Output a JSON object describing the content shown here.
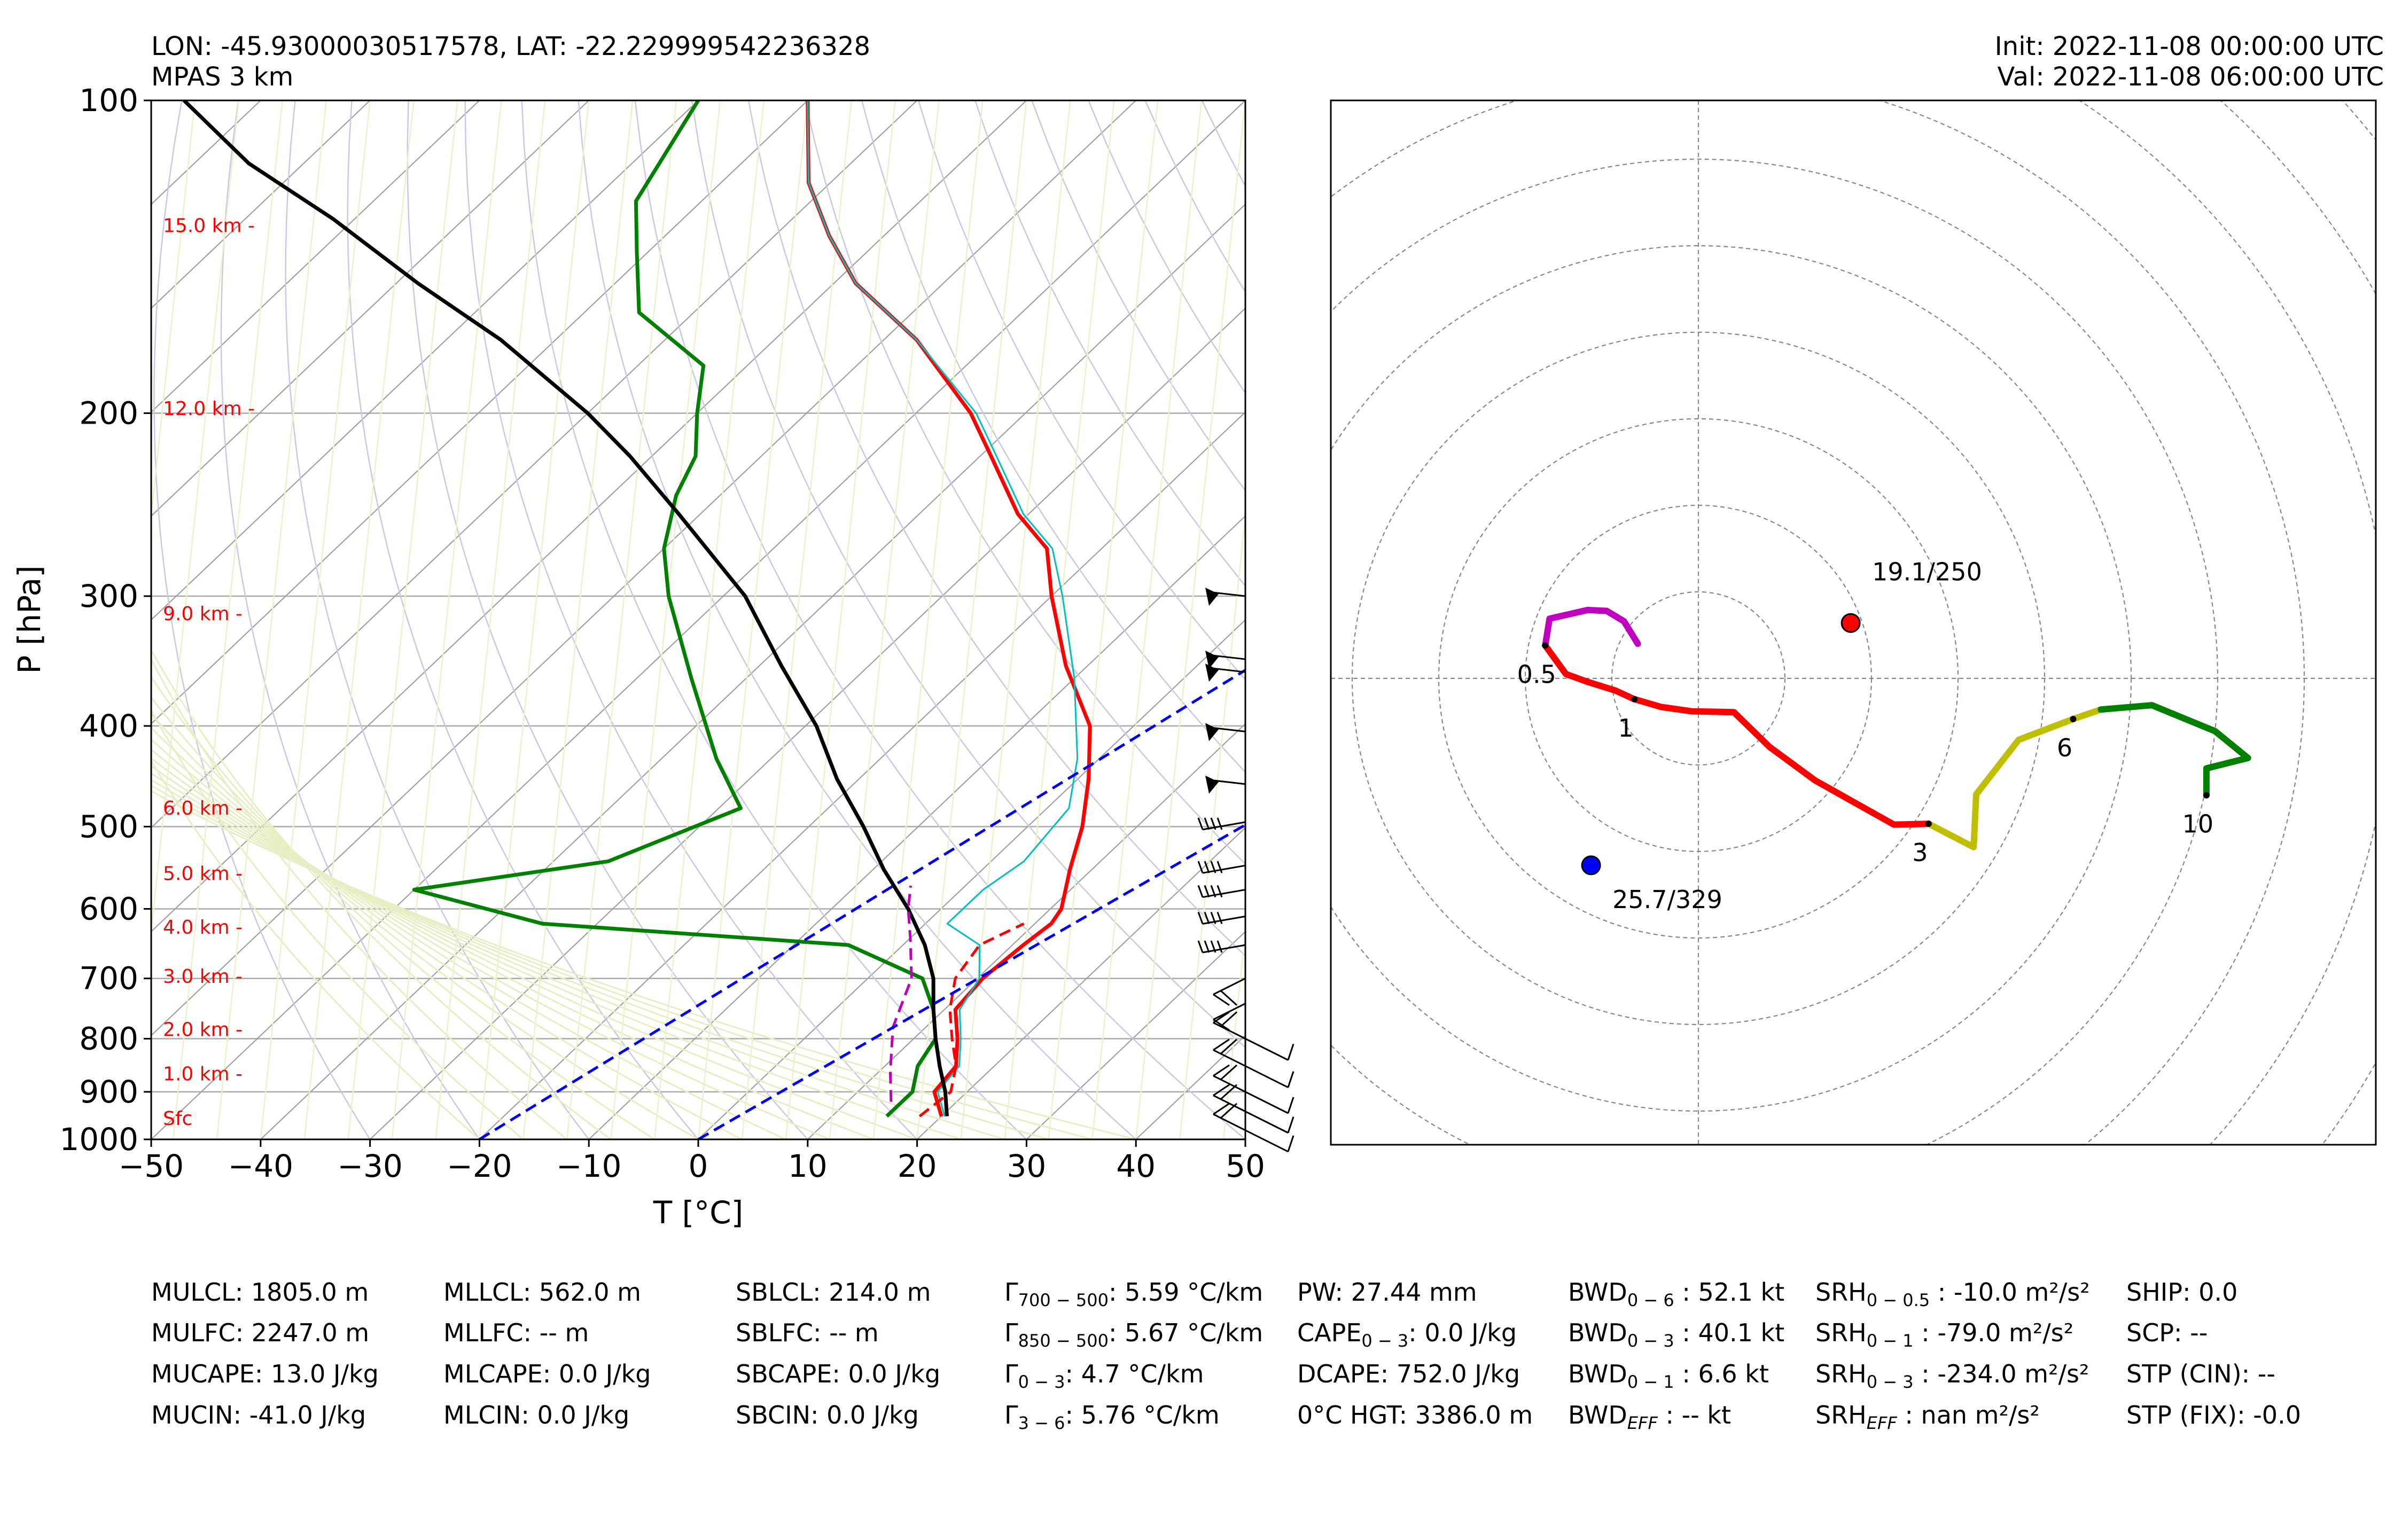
{
  "header": {
    "location": "LON: -45.93000030517578, LAT: -22.229999542236328",
    "model": "MPAS 3 km",
    "init": "Init: 2022-11-08 00:00:00 UTC",
    "valid": "Val: 2022-11-08 06:00:00 UTC"
  },
  "chart_data": [
    {
      "type": "line",
      "subtype": "skew-T log-P",
      "xlabel": "T [°C]",
      "ylabel": "P [hPa]",
      "xlim": [
        -50,
        50
      ],
      "ylim": [
        1000,
        100
      ],
      "y_scale": "log",
      "x_ticks": [
        "−50",
        "−40",
        "−30",
        "−20",
        "−10",
        "0",
        "10",
        "20",
        "30",
        "40",
        "50"
      ],
      "y_ticks": [
        100,
        200,
        300,
        400,
        500,
        600,
        700,
        800,
        900,
        1000
      ],
      "height_labels": [
        {
          "p": 132,
          "label": "15.0 km"
        },
        {
          "p": 198,
          "label": "12.0 km"
        },
        {
          "p": 312,
          "label": "9.0 km"
        },
        {
          "p": 480,
          "label": "6.0 km"
        },
        {
          "p": 555,
          "label": "5.0 km"
        },
        {
          "p": 625,
          "label": "4.0 km"
        },
        {
          "p": 697,
          "label": "3.0 km"
        },
        {
          "p": 784,
          "label": "2.0 km"
        },
        {
          "p": 865,
          "label": "1.0 km"
        },
        {
          "p": 955,
          "label": "Sfc"
        }
      ],
      "series": [
        {
          "role": "temperature",
          "color": "#ff0000",
          "points": [
            [
              20.0,
              950
            ],
            [
              17,
              900
            ],
            [
              16.5,
              850
            ],
            [
              14,
              800
            ],
            [
              11,
              750
            ],
            [
              10.5,
              700
            ],
            [
              11,
              650
            ],
            [
              11.5,
              620
            ],
            [
              11,
              600
            ],
            [
              8,
              550
            ],
            [
              5,
              500
            ],
            [
              1,
              450
            ],
            [
              -4,
              400
            ],
            [
              -12,
              350
            ],
            [
              -20,
              300
            ],
            [
              -25,
              270
            ],
            [
              -31,
              250
            ],
            [
              -39,
              220
            ],
            [
              -45,
              200
            ],
            [
              -57,
              170
            ],
            [
              -68,
              150
            ],
            [
              -75,
              135
            ],
            [
              -82,
              120
            ],
            [
              -90,
              100
            ]
          ]
        },
        {
          "role": "dewpoint",
          "color": "#008000",
          "points": [
            [
              15,
              950
            ],
            [
              15,
              900
            ],
            [
              13,
              850
            ],
            [
              12,
              800
            ],
            [
              9,
              750
            ],
            [
              5,
              700
            ],
            [
              -5,
              650
            ],
            [
              -35,
              620
            ],
            [
              -50,
              575
            ],
            [
              -35,
              540
            ],
            [
              -28,
              480
            ],
            [
              -35,
              430
            ],
            [
              -45,
              360
            ],
            [
              -55,
              300
            ],
            [
              -60,
              270
            ],
            [
              -64,
              240
            ],
            [
              -66,
              220
            ],
            [
              -70,
              200
            ],
            [
              -74,
              180
            ],
            [
              -85,
              160
            ],
            [
              -91,
              140
            ],
            [
              -96,
              125
            ],
            [
              -100,
              100
            ]
          ]
        },
        {
          "role": "virtual-temperature",
          "color": "#00bfbf",
          "points": [
            [
              20.3,
              950
            ],
            [
              17.3,
              900
            ],
            [
              16.8,
              850
            ],
            [
              14.3,
              800
            ],
            [
              11.4,
              750
            ],
            [
              10.2,
              700
            ],
            [
              7,
              650
            ],
            [
              2,
              620
            ],
            [
              2,
              575
            ],
            [
              3,
              540
            ],
            [
              2,
              480
            ],
            [
              -2,
              430
            ],
            [
              -10,
              360
            ],
            [
              -19,
              300
            ],
            [
              -24.5,
              270
            ],
            [
              -30.5,
              250
            ],
            [
              -38.5,
              220
            ],
            [
              -44.5,
              200
            ],
            [
              -57,
              170
            ],
            [
              -68,
              150
            ],
            [
              -75,
              135
            ],
            [
              -82,
              120
            ],
            [
              -90,
              100
            ]
          ]
        },
        {
          "role": "parcel-profile",
          "color": "#000000",
          "points": [
            [
              20.5,
              950
            ],
            [
              18,
              900
            ],
            [
              15,
              850
            ],
            [
              12,
              800
            ],
            [
              9,
              750
            ],
            [
              6,
              700
            ],
            [
              2,
              650
            ],
            [
              -3,
              600
            ],
            [
              -9,
              550
            ],
            [
              -15,
              500
            ],
            [
              -22,
              450
            ],
            [
              -29,
              400
            ],
            [
              -38,
              350
            ],
            [
              -48,
              300
            ],
            [
              -62,
              250
            ],
            [
              -72,
              220
            ],
            [
              -80,
              200
            ],
            [
              -95,
              170
            ],
            [
              -108,
              150
            ],
            [
              -122,
              130
            ],
            [
              -135,
              115
            ],
            [
              -147,
              100
            ]
          ]
        },
        {
          "role": "red-dashed",
          "color": "#ff0000",
          "dashed": true,
          "points": [
            [
              18,
              950
            ],
            [
              18.5,
              900
            ],
            [
              16.5,
              850
            ],
            [
              13.5,
              800
            ],
            [
              10.5,
              750
            ],
            [
              8,
              700
            ],
            [
              7,
              650
            ],
            [
              9,
              620
            ]
          ]
        },
        {
          "role": "magenta-dashed",
          "color": "#bf00bf",
          "dashed": true,
          "points": [
            [
              14,
              920
            ],
            [
              11,
              860
            ],
            [
              7,
              780
            ],
            [
              4,
              700
            ],
            [
              0,
              640
            ],
            [
              -3,
              600
            ],
            [
              -5,
              570
            ]
          ]
        },
        {
          "role": "blue-dashed-1",
          "color": "#0000ff",
          "dashed": true,
          "points": [
            [
              -20,
              1000
            ],
            [
              35,
              100
            ]
          ]
        },
        {
          "role": "blue-dashed-2",
          "color": "#0000ff",
          "dashed": true,
          "points": [
            [
              0,
              1000
            ],
            [
              60,
              120
            ]
          ]
        }
      ],
      "wind_barbs": [
        {
          "p": 300,
          "kind": "flag"
        },
        {
          "p": 345,
          "kind": "flag"
        },
        {
          "p": 355,
          "kind": "flag"
        },
        {
          "p": 405,
          "kind": "flag"
        },
        {
          "p": 455,
          "kind": "flag"
        },
        {
          "p": 495,
          "kind": "barbs",
          "n": 4
        },
        {
          "p": 545,
          "kind": "barbs",
          "n": 4
        },
        {
          "p": 575,
          "kind": "barbs",
          "n": 4
        },
        {
          "p": 610,
          "kind": "barbs",
          "n": 4
        },
        {
          "p": 650,
          "kind": "barbs",
          "n": 4
        },
        {
          "p": 700,
          "kind": "barbs",
          "n": 2
        },
        {
          "p": 740,
          "kind": "barbs",
          "n": 1
        },
        {
          "p": 800,
          "kind": "barbs",
          "n": 2
        },
        {
          "p": 850,
          "kind": "barbs",
          "n": 2
        },
        {
          "p": 900,
          "kind": "barbs",
          "n": 2
        },
        {
          "p": 940,
          "kind": "barbs",
          "n": 2
        },
        {
          "p": 980,
          "kind": "barbs",
          "n": 2
        }
      ]
    },
    {
      "type": "line",
      "subtype": "hodograph",
      "rings": 10,
      "segments": [
        {
          "color": "#bf00bf",
          "points": [
            [
              -7,
              4
            ],
            [
              -8.6,
              6.6
            ],
            [
              -10.6,
              7.8
            ],
            [
              -12.8,
              7.9
            ],
            [
              -17.2,
              6.9
            ],
            [
              -17.7,
              3.8
            ]
          ]
        },
        {
          "color": "#ff0000",
          "points": [
            [
              -17.7,
              3.8
            ],
            [
              -15.3,
              0.5
            ],
            [
              -12.8,
              -0.4
            ],
            [
              -9.6,
              -1.4
            ],
            [
              -7.4,
              -2.4
            ],
            [
              -4.3,
              -3.3
            ],
            [
              -0.8,
              -3.8
            ],
            [
              4.1,
              -3.9
            ],
            [
              8.2,
              -7.9
            ],
            [
              13.5,
              -11.8
            ],
            [
              22.6,
              -16.9
            ],
            [
              26.6,
              -16.8
            ]
          ]
        },
        {
          "color": "#bfbf00",
          "points": [
            [
              26.6,
              -16.8
            ],
            [
              31.8,
              -19.5
            ],
            [
              32.1,
              -13.4
            ],
            [
              37,
              -7.1
            ],
            [
              43.3,
              -4.7
            ],
            [
              46.5,
              -3.6
            ]
          ]
        },
        {
          "color": "#008000",
          "points": [
            [
              46.5,
              -3.6
            ],
            [
              52.4,
              -3.1
            ],
            [
              59.7,
              -6.1
            ],
            [
              63.5,
              -9.2
            ],
            [
              58.7,
              -10.4
            ],
            [
              58.7,
              -13.5
            ]
          ]
        }
      ],
      "markers": [
        {
          "u": 17.6,
          "v": 6.4,
          "color": "#ff0000",
          "label": "19.1/250"
        },
        {
          "u": -12.4,
          "v": -21.6,
          "color": "#0000ff",
          "label": "25.7/329"
        }
      ],
      "height_labels": [
        {
          "u": -17.7,
          "v": 3.8,
          "label": "0.5"
        },
        {
          "u": -7.4,
          "v": -2.4,
          "label": "1"
        },
        {
          "u": 26.6,
          "v": -16.8,
          "label": "3"
        },
        {
          "u": 43.3,
          "v": -4.7,
          "label": "6"
        },
        {
          "u": 58.7,
          "v": -13.5,
          "label": "10"
        }
      ]
    }
  ],
  "stats": {
    "col1": [
      "MULCL: 1805.0 m",
      "MULFC: 2247.0 m",
      "MUCAPE: 13.0 J/kg",
      "MUCIN: -41.0 J/kg"
    ],
    "col2": [
      "MLLCL: 562.0 m",
      "MLLFC: -- m",
      "MLCAPE: 0.0 J/kg",
      "MLCIN: 0.0 J/kg"
    ],
    "col3": [
      "SBLCL: 214.0 m",
      "SBLFC: -- m",
      "SBCAPE: 0.0 J/kg",
      "SBCIN: 0.0 J/kg"
    ],
    "col4": [
      {
        "base": "Γ",
        "sub": "700 − 500",
        "value": ": 5.59 °C/km"
      },
      {
        "base": "Γ",
        "sub": "850 − 500",
        "value": ": 5.67 °C/km"
      },
      {
        "base": "Γ",
        "sub": "0 − 3",
        "value": ": 4.7 °C/km"
      },
      {
        "base": "Γ",
        "sub": "3 − 6",
        "value": ": 5.76 °C/km"
      }
    ],
    "col5": [
      {
        "base": "PW: 27.44 mm",
        "sub": "",
        "value": ""
      },
      {
        "base": "CAPE",
        "sub": "0 − 3",
        "value": ": 0.0 J/kg"
      },
      {
        "base": "DCAPE: 752.0 J/kg",
        "sub": "",
        "value": ""
      },
      {
        "base": "0°C HGT: 3386.0 m",
        "sub": "",
        "value": ""
      }
    ],
    "col6": [
      {
        "base": "BWD",
        "sub": "0 − 6",
        "value": " : 52.1 kt"
      },
      {
        "base": "BWD",
        "sub": "0 − 3",
        "value": " : 40.1 kt"
      },
      {
        "base": "BWD",
        "sub": "0 − 1",
        "value": " : 6.6 kt"
      },
      {
        "base": "BWD",
        "sub": "EFF",
        "value": " : -- kt"
      }
    ],
    "col7": [
      {
        "base": "SRH",
        "sub": "0 − 0.5",
        "value": " : -10.0 m²/s²"
      },
      {
        "base": "SRH",
        "sub": "0 − 1",
        "value": " : -79.0 m²/s²"
      },
      {
        "base": "SRH",
        "sub": "0 − 3",
        "value": " : -234.0 m²/s²"
      },
      {
        "base": "SRH",
        "sub": "EFF",
        "value": " : nan m²/s²"
      }
    ],
    "col8": [
      "SHIP: 0.0",
      "SCP: --",
      "STP (CIN): --",
      "STP (FIX): -0.0"
    ]
  }
}
